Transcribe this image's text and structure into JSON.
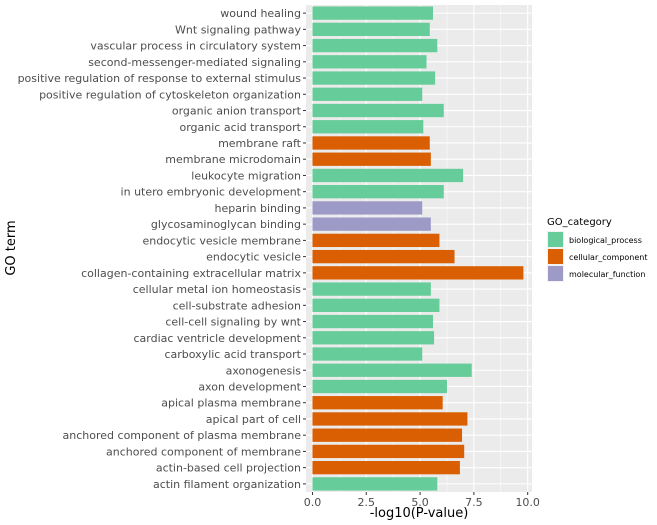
{
  "chart_data": {
    "type": "bar",
    "orientation": "horizontal",
    "xlabel": "-log10(P-value)",
    "ylabel": "GO term",
    "xlim": [
      -0.3,
      10.2
    ],
    "x_ticks": [
      0.0,
      2.5,
      5.0,
      7.5,
      10.0
    ],
    "x_tick_labels": [
      "0.0",
      "2.5",
      "5.0",
      "7.5",
      "10.0"
    ],
    "grid": true,
    "legend": {
      "title": "GO_category",
      "position": "right",
      "entries": [
        {
          "label": "biological_process",
          "color": "#66CC99"
        },
        {
          "label": "cellular_component",
          "color": "#D95F02"
        },
        {
          "label": "molecular_function",
          "color": "#9E9AC8"
        }
      ]
    },
    "categories": [
      "wound healing",
      "Wnt signaling pathway",
      "vascular process in circulatory system",
      "second-messenger-mediated signaling",
      "positive regulation of response to external stimulus",
      "positive regulation of cytoskeleton organization",
      "organic anion transport",
      "organic acid transport",
      "membrane raft",
      "membrane microdomain",
      "leukocyte migration",
      "in utero embryonic development",
      "heparin binding",
      "glycosaminoglycan binding",
      "endocytic vesicle membrane",
      "endocytic vesicle",
      "collagen-containing extracellular matrix",
      "cellular metal ion homeostasis",
      "cell-substrate adhesion",
      "cell-cell signaling by wnt",
      "cardiac ventricle development",
      "carboxylic acid transport",
      "axonogenesis",
      "axon development",
      "apical plasma membrane",
      "apical part of cell",
      "anchored component of plasma membrane",
      "anchored component of membrane",
      "actin-based cell projection",
      "actin filament organization"
    ],
    "values": [
      5.6,
      5.45,
      5.8,
      5.3,
      5.7,
      5.1,
      6.1,
      5.15,
      5.45,
      5.5,
      7.0,
      6.1,
      5.1,
      5.5,
      5.9,
      6.6,
      9.8,
      5.5,
      5.9,
      5.6,
      5.65,
      5.1,
      7.4,
      6.25,
      6.05,
      7.2,
      6.95,
      7.05,
      6.85,
      5.8
    ],
    "groups": [
      "biological_process",
      "biological_process",
      "biological_process",
      "biological_process",
      "biological_process",
      "biological_process",
      "biological_process",
      "biological_process",
      "cellular_component",
      "cellular_component",
      "biological_process",
      "biological_process",
      "molecular_function",
      "molecular_function",
      "cellular_component",
      "cellular_component",
      "cellular_component",
      "biological_process",
      "biological_process",
      "biological_process",
      "biological_process",
      "biological_process",
      "biological_process",
      "biological_process",
      "cellular_component",
      "cellular_component",
      "cellular_component",
      "cellular_component",
      "cellular_component",
      "biological_process"
    ],
    "panel_background": "#EBEBEB",
    "grid_color": "#FFFFFF"
  }
}
